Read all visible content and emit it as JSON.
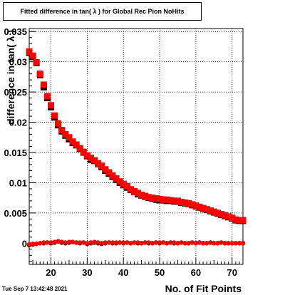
{
  "chart_data": {
    "type": "scatter",
    "title": "Fitted difference in tan( λ ) for Global Rec Pion NoHits",
    "xlabel": "No. of Fit Points",
    "ylabel": "difference in tan( λ )",
    "xlim": [
      14,
      73
    ],
    "ylim": [
      -0.0035,
      0.0355
    ],
    "x_ticks": [
      20,
      30,
      40,
      50,
      60,
      70
    ],
    "x_tick_labels": [
      "20",
      "30",
      "40",
      "50",
      "60",
      "70"
    ],
    "y_ticks": [
      0,
      0.005,
      0.01,
      0.015,
      0.02,
      0.025,
      0.03,
      0.035
    ],
    "y_tick_labels": [
      "0",
      "0.005",
      "0.01",
      "0.015",
      "0.02",
      "0.025",
      "0.03",
      "0.035"
    ],
    "grid": true,
    "x": [
      14,
      15,
      16,
      17,
      18,
      19,
      20,
      21,
      22,
      23,
      24,
      25,
      26,
      27,
      28,
      29,
      30,
      31,
      32,
      33,
      34,
      35,
      36,
      37,
      38,
      39,
      40,
      41,
      42,
      43,
      44,
      45,
      46,
      47,
      48,
      49,
      50,
      51,
      52,
      53,
      54,
      55,
      56,
      57,
      58,
      59,
      60,
      61,
      62,
      63,
      64,
      65,
      66,
      67,
      68,
      69,
      70,
      71,
      72,
      73
    ],
    "series": [
      {
        "marker": "square",
        "color": "#000000",
        "values": [
          0.0315,
          0.0308,
          0.0298,
          0.0278,
          0.0258,
          0.024,
          0.0225,
          0.0208,
          0.0195,
          0.0185,
          0.0178,
          0.0172,
          0.0166,
          0.0162,
          0.0156,
          0.015,
          0.0144,
          0.0138,
          0.0136,
          0.0131,
          0.0126,
          0.012,
          0.0115,
          0.011,
          0.0105,
          0.01,
          0.0096,
          0.0092,
          0.0088,
          0.0085,
          0.0081,
          0.0079,
          0.0077,
          0.0075,
          0.0074,
          0.0072,
          0.0071,
          0.0071,
          0.007,
          0.007,
          0.0069,
          0.0069,
          0.0067,
          0.0066,
          0.0065,
          0.0063,
          0.0061,
          0.0059,
          0.0057,
          0.0055,
          0.0053,
          0.0051,
          0.0049,
          0.0047,
          0.0045,
          0.0043,
          0.0041,
          0.0038,
          0.0037,
          0.0037
        ]
      },
      {
        "marker": "square",
        "color": "#ff0000",
        "values": [
          0.0317,
          0.031,
          0.0299,
          0.028,
          0.0262,
          0.0243,
          0.0228,
          0.0211,
          0.0198,
          0.0187,
          0.018,
          0.0175,
          0.0168,
          0.0163,
          0.0157,
          0.0151,
          0.0145,
          0.0141,
          0.0137,
          0.0132,
          0.0128,
          0.0122,
          0.0117,
          0.0112,
          0.0107,
          0.0102,
          0.0098,
          0.0094,
          0.0089,
          0.0086,
          0.0083,
          0.008,
          0.0078,
          0.0076,
          0.0075,
          0.0074,
          0.0073,
          0.0072,
          0.0072,
          0.0071,
          0.007,
          0.007,
          0.0068,
          0.0067,
          0.0066,
          0.0064,
          0.0062,
          0.006,
          0.0058,
          0.0056,
          0.0054,
          0.0052,
          0.005,
          0.0048,
          0.0046,
          0.0044,
          0.0042,
          0.0039,
          0.0038,
          0.0038
        ]
      },
      {
        "marker": "circle",
        "color": "#000000",
        "values": [
          -0.0003,
          -0.0002,
          -0.0001,
          0.0,
          0.0,
          0.0001,
          0.0,
          0.0001,
          0.0003,
          0.0001,
          0.0,
          0.0001,
          0.0002,
          0.0001,
          0.0,
          0.0001,
          -0.0001,
          0.0,
          0.0001,
          0.0,
          -0.0001,
          0.0,
          0.0001,
          0.0,
          0.0,
          0.0001,
          0.0,
          0.0001,
          0.0,
          0.0001,
          0.0,
          0.0,
          0.0001,
          0.0,
          0.0,
          0.0001,
          0.0,
          0.0001,
          0.0,
          0.0001,
          0.0,
          0.0,
          0.0001,
          0.0,
          0.0,
          0.0001,
          0.0,
          0.0001,
          0.0,
          0.0,
          0.0001,
          0.0,
          0.0,
          0.0001,
          0.0,
          0.0,
          0.0,
          0.0,
          0.0,
          0.0
        ]
      },
      {
        "marker": "circle",
        "color": "#ff0000",
        "values": [
          -0.0002,
          -0.0001,
          -0.0001,
          0.0,
          0.0001,
          0.0001,
          0.0001,
          0.0002,
          0.0003,
          0.0002,
          0.0001,
          0.0002,
          0.0002,
          0.0001,
          0.0001,
          0.0001,
          0.0,
          0.0001,
          0.0002,
          0.0001,
          0.0,
          0.0001,
          0.0001,
          0.0001,
          0.0001,
          0.0001,
          0.0001,
          0.0001,
          0.0,
          0.0001,
          0.0001,
          0.0,
          0.0001,
          0.0001,
          0.0,
          0.0001,
          0.0001,
          0.0001,
          0.0,
          0.0001,
          0.0001,
          0.0,
          0.0001,
          0.0,
          0.0,
          0.0001,
          0.0,
          0.0001,
          0.0,
          0.0,
          0.0001,
          0.0,
          0.0,
          0.0001,
          0.0,
          0.0,
          0.0,
          0.0,
          0.0,
          0.0
        ]
      }
    ]
  },
  "footer": {
    "timestamp": "Tue Sep  7 13:42:48 2021"
  }
}
